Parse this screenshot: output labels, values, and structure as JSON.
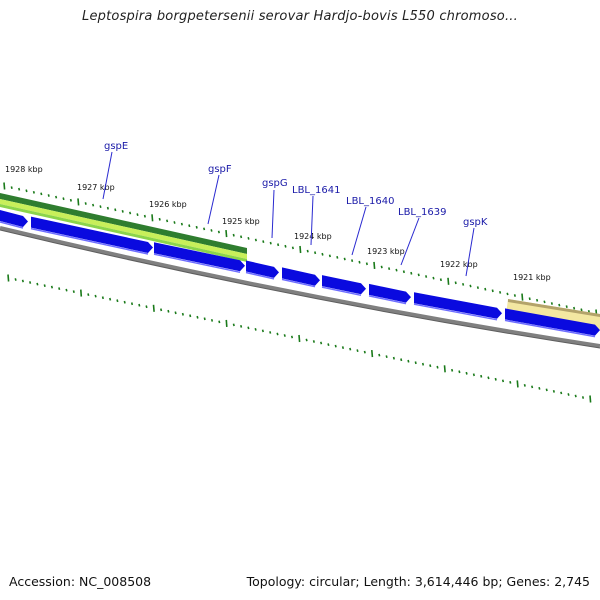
{
  "title": "Leptospira borgpetersenii serovar Hardjo-bovis L550 chromoso...",
  "footer": {
    "accession": "Accession: NC_008508",
    "summary": "Topology: circular; Length: 3,614,446 bp; Genes: 2,745"
  },
  "scale_labels": [
    "1928 kbp",
    "1927 kbp",
    "1926 kbp",
    "1925 kbp",
    "1924 kbp",
    "1923 kbp",
    "1922 kbp",
    "1921 kbp"
  ],
  "gene_labels": [
    "gspE",
    "gspF",
    "gspG",
    "LBL_1641",
    "LBL_1640",
    "LBL_1639",
    "gspK"
  ],
  "colors": {
    "gene_blue": "#0a0adf",
    "gene_highlight": "#6e6eff",
    "backbone": "#808080",
    "tick_green": "#1a7a1a",
    "label_blue": "#1a1aa8",
    "track_dark_green": "#2f7d2f",
    "track_yellow_green": "#c8ef5a",
    "track_tan": "#f3e7a1"
  }
}
